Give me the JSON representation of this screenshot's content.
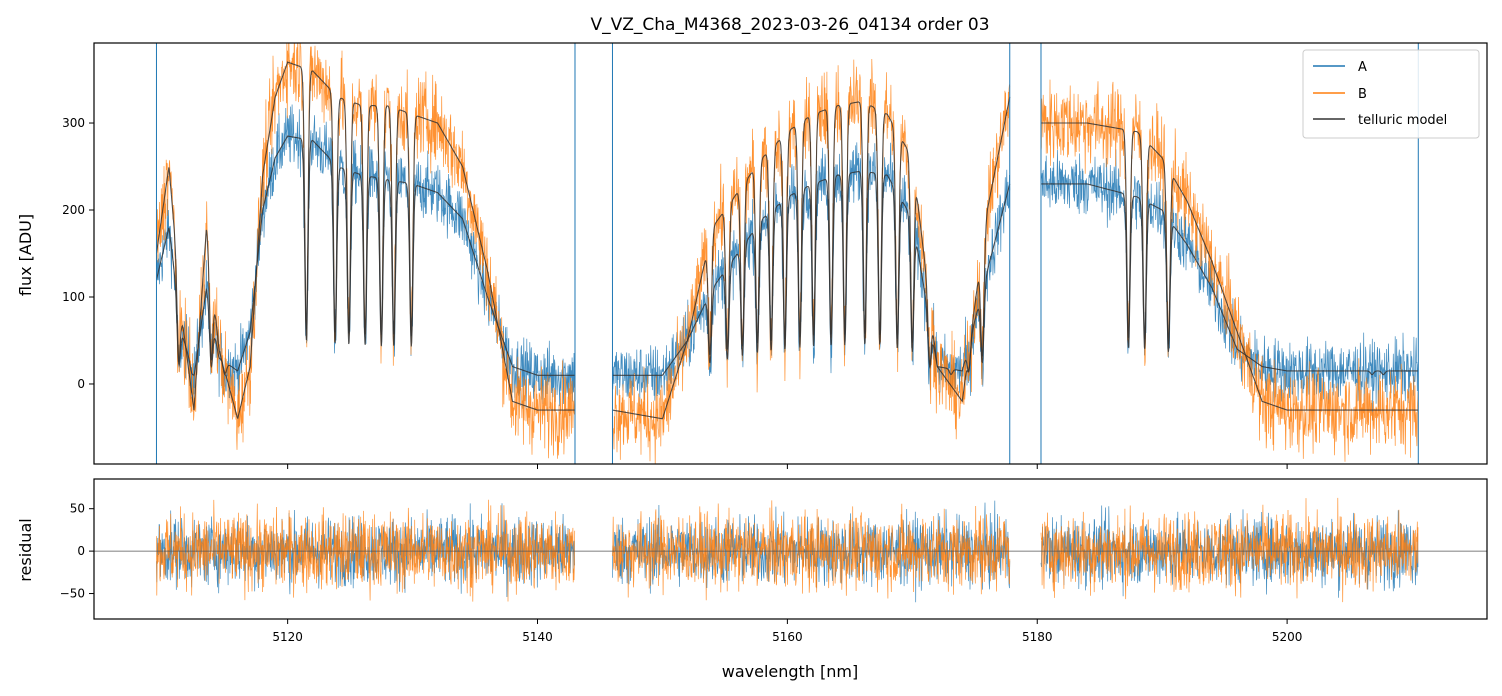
{
  "chart_data": {
    "type": "line",
    "title": "V_VZ_Cha_M4368_2023-03-26_04134  order 03",
    "xlabel": "wavelength [nm]",
    "xlim": [
      5104.5,
      5216
    ],
    "x_ticks": [
      5120,
      5140,
      5160,
      5180,
      5200
    ],
    "x_tick_labels": [
      "5120",
      "5140",
      "5160",
      "5180",
      "5200"
    ],
    "segments": [
      [
        5109.5,
        5143.0
      ],
      [
        5146.0,
        5177.8
      ],
      [
        5180.3,
        5210.5
      ]
    ],
    "legend": {
      "location": "top-right",
      "entries": [
        "A",
        "B",
        "telluric model"
      ]
    },
    "colors": {
      "A": "#1f77b4",
      "B": "#ff7f0e",
      "telluric model": "#333333"
    },
    "panels": [
      {
        "ylabel": "flux [ADU]",
        "ylim": [
          -92,
          392
        ],
        "y_ticks": [
          0,
          100,
          200,
          300
        ],
        "y_tick_labels": [
          "0",
          "100",
          "200",
          "300"
        ],
        "series": [
          {
            "name": "A",
            "continuum": [
              [
                5109.5,
                120
              ],
              [
                5110.5,
                180
              ],
              [
                5111.5,
                60
              ],
              [
                5112.5,
                10
              ],
              [
                5113.5,
                110
              ],
              [
                5114.5,
                30
              ],
              [
                5116,
                15
              ],
              [
                5117,
                60
              ],
              [
                5118,
                200
              ],
              [
                5119,
                260
              ],
              [
                5120,
                285
              ],
              [
                5122,
                280
              ],
              [
                5124,
                250
              ],
              [
                5126,
                240
              ],
              [
                5128,
                235
              ],
              [
                5130,
                230
              ],
              [
                5132,
                220
              ],
              [
                5134,
                190
              ],
              [
                5136,
                100
              ],
              [
                5138,
                20
              ],
              [
                5140,
                10
              ],
              [
                5143,
                10
              ],
              [
                5146,
                10
              ],
              [
                5150,
                10
              ],
              [
                5152,
                50
              ],
              [
                5154,
                110
              ],
              [
                5156,
                150
              ],
              [
                5158,
                190
              ],
              [
                5160,
                215
              ],
              [
                5162,
                230
              ],
              [
                5164,
                240
              ],
              [
                5166,
                245
              ],
              [
                5168,
                240
              ],
              [
                5170,
                190
              ],
              [
                5172,
                20
              ],
              [
                5174,
                15
              ],
              [
                5176,
                130
              ],
              [
                5177.8,
                230
              ],
              [
                5180.3,
                230
              ],
              [
                5184,
                230
              ],
              [
                5188,
                215
              ],
              [
                5190,
                200
              ],
              [
                5192,
                160
              ],
              [
                5194,
                110
              ],
              [
                5196,
                40
              ],
              [
                5198,
                20
              ],
              [
                5200,
                15
              ],
              [
                5205,
                15
              ],
              [
                5210.5,
                15
              ]
            ],
            "noise": 18
          },
          {
            "name": "B",
            "continuum": [
              [
                5109.5,
                150
              ],
              [
                5110.5,
                250
              ],
              [
                5111.5,
                80
              ],
              [
                5112.5,
                -30
              ],
              [
                5113.5,
                180
              ],
              [
                5114.5,
                40
              ],
              [
                5116,
                -40
              ],
              [
                5117,
                20
              ],
              [
                5118,
                240
              ],
              [
                5119,
                330
              ],
              [
                5120,
                370
              ],
              [
                5122,
                360
              ],
              [
                5124,
                330
              ],
              [
                5126,
                320
              ],
              [
                5128,
                320
              ],
              [
                5130,
                310
              ],
              [
                5132,
                300
              ],
              [
                5134,
                250
              ],
              [
                5136,
                130
              ],
              [
                5138,
                -20
              ],
              [
                5140,
                -30
              ],
              [
                5143,
                -30
              ],
              [
                5146,
                -30
              ],
              [
                5150,
                -40
              ],
              [
                5152,
                50
              ],
              [
                5154,
                180
              ],
              [
                5156,
                220
              ],
              [
                5158,
                260
              ],
              [
                5160,
                290
              ],
              [
                5162,
                310
              ],
              [
                5164,
                320
              ],
              [
                5166,
                325
              ],
              [
                5168,
                310
              ],
              [
                5170,
                260
              ],
              [
                5172,
                20
              ],
              [
                5174,
                -20
              ],
              [
                5176,
                200
              ],
              [
                5177.8,
                330
              ],
              [
                5180.3,
                300
              ],
              [
                5184,
                300
              ],
              [
                5188,
                290
              ],
              [
                5190,
                260
              ],
              [
                5192,
                210
              ],
              [
                5194,
                140
              ],
              [
                5196,
                60
              ],
              [
                5198,
                -20
              ],
              [
                5200,
                -30
              ],
              [
                5205,
                -30
              ],
              [
                5210.5,
                -30
              ]
            ],
            "noise": 24
          },
          {
            "name": "telluric model",
            "line_markers": [
              5111.3,
              5112.4,
              5113.9,
              5115.0,
              5121.5,
              5123.8,
              5124.9,
              5126.2,
              5127.5,
              5128.5,
              5129.9,
              5153.8,
              5155.2,
              5156.4,
              5157.6,
              5158.7,
              5159.8,
              5161.0,
              5162.1,
              5163.5,
              5164.6,
              5166.2,
              5167.4,
              5168.8,
              5170.0,
              5171.4,
              5173.1,
              5174.5,
              5175.6,
              5187.3,
              5188.6,
              5190.5,
              5206.8,
              5207.7
            ]
          }
        ]
      },
      {
        "ylabel": "residual",
        "ylim": [
          -80,
          85
        ],
        "y_ticks": [
          -50,
          0,
          50
        ],
        "y_tick_labels": [
          "−50",
          "0",
          "50"
        ],
        "zero_line": true,
        "series": [
          {
            "name": "A",
            "center": 0,
            "spread": 45
          },
          {
            "name": "B",
            "center": 0,
            "spread": 50
          }
        ]
      }
    ]
  }
}
